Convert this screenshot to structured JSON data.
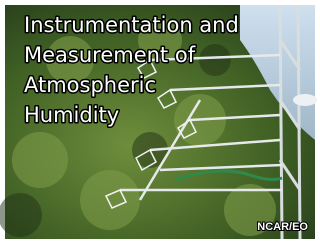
{
  "title_lines": [
    "Instrumentation and",
    "Measurement of",
    "Atmospheric",
    "Humidity"
  ],
  "credit": "NCAR/EO"
}
